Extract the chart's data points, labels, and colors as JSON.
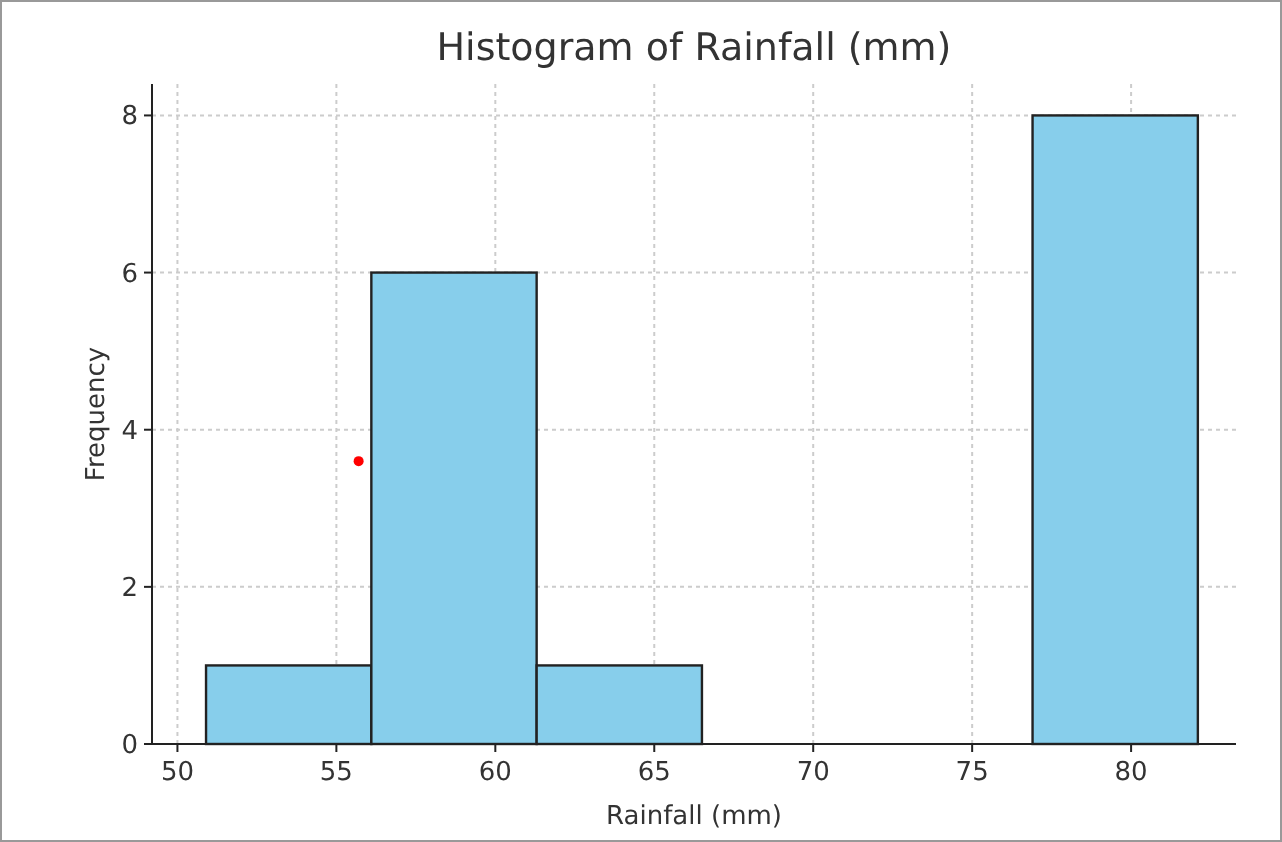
{
  "chart_data": {
    "type": "histogram",
    "title": "Histogram of Rainfall (mm)",
    "xlabel": "Rainfall (mm)",
    "ylabel": "Frequency",
    "bins": [
      50.9,
      56.1,
      61.3,
      66.5,
      71.7,
      76.9,
      82.1
    ],
    "values": [
      1,
      6,
      1,
      0,
      0,
      8
    ],
    "color": "#87ceeb",
    "series": [
      {
        "type": "scatter",
        "x": [
          55.7
        ],
        "values": [
          3.6
        ],
        "color": "#ff0000"
      }
    ],
    "xlim": [
      49.2,
      83.3
    ],
    "ylim": [
      0,
      8.4
    ],
    "xticks": [
      50,
      55,
      60,
      65,
      70,
      75,
      80
    ],
    "yticks": [
      0,
      2,
      4,
      6,
      8
    ],
    "grid": true
  }
}
